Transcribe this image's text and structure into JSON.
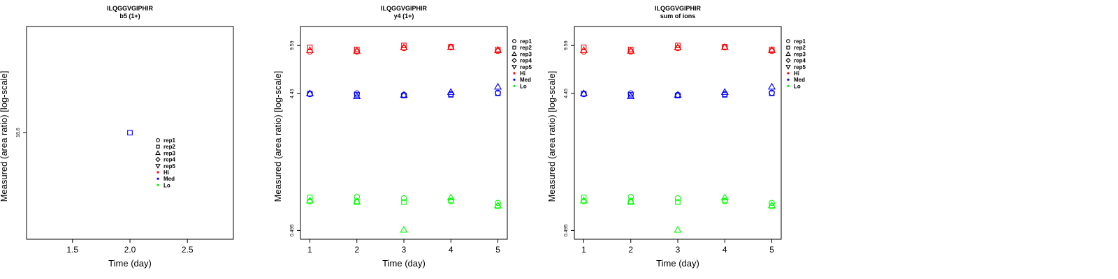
{
  "colors": {
    "Hi": "#ff0000",
    "Med": "#0000ff",
    "Lo": "#00ff00",
    "axis": "#000000"
  },
  "legend": {
    "reps": [
      {
        "label": "rep1",
        "shape": "circle"
      },
      {
        "label": "rep2",
        "shape": "square"
      },
      {
        "label": "rep3",
        "shape": "triangle-up"
      },
      {
        "label": "rep4",
        "shape": "diamond"
      },
      {
        "label": "rep5",
        "shape": "triangle-down"
      }
    ],
    "groups": [
      {
        "label": "Hi",
        "color": "#ff0000"
      },
      {
        "label": "Med",
        "color": "#0000ff"
      },
      {
        "label": "Lo",
        "color": "#00ff00"
      }
    ]
  },
  "chart_data": [
    {
      "type": "scatter",
      "title": "ILQGGVGIPHIR",
      "subtitle": "b5 (1+)",
      "xlabel": "Time (day)",
      "ylabel": "Measured (area ratio) [log-scale]",
      "xlim": [
        1.1,
        2.9
      ],
      "ylim": [
        4,
        86
      ],
      "log_y": true,
      "x_ticks": [
        1.5,
        2.0,
        2.5
      ],
      "x_tick_labels": [
        "1.5",
        "2.0",
        "2.5"
      ],
      "y_ticks": [
        18.6
      ],
      "y_tick_labels": [
        "18.6"
      ],
      "legend_position": "center-right",
      "points": [
        {
          "x": 2,
          "y": 18.6,
          "rep": "rep2",
          "group": "Med"
        }
      ]
    },
    {
      "type": "scatter",
      "title": "ILQGGVGIPHIR",
      "subtitle": "y4 (1+)",
      "xlabel": "Time (day)",
      "ylabel": "Measured (area ratio) [log-scale]",
      "xlim": [
        0.8,
        5.2
      ],
      "ylim": [
        0.43,
        13
      ],
      "log_y": true,
      "x_ticks": [
        1,
        2,
        3,
        4,
        5
      ],
      "x_tick_labels": [
        "1",
        "2",
        "3",
        "4",
        "5"
      ],
      "y_ticks": [
        0.495,
        4.43,
        9.59
      ],
      "y_tick_labels": [
        "0.495",
        "4.43",
        "9.59"
      ],
      "legend_position": "top-right",
      "points": [
        {
          "x": 1,
          "y": 8.7,
          "rep": "rep1",
          "group": "Hi"
        },
        {
          "x": 1,
          "y": 9.3,
          "rep": "rep2",
          "group": "Hi"
        },
        {
          "x": 1,
          "y": 8.9,
          "rep": "rep3",
          "group": "Hi"
        },
        {
          "x": 1,
          "y": 4.4,
          "rep": "rep1",
          "group": "Med"
        },
        {
          "x": 1,
          "y": 4.43,
          "rep": "rep2",
          "group": "Med"
        },
        {
          "x": 1,
          "y": 4.45,
          "rep": "rep3",
          "group": "Med"
        },
        {
          "x": 1,
          "y": 0.79,
          "rep": "rep1",
          "group": "Lo"
        },
        {
          "x": 1,
          "y": 0.84,
          "rep": "rep2",
          "group": "Lo"
        },
        {
          "x": 1,
          "y": 0.8,
          "rep": "rep3",
          "group": "Lo"
        },
        {
          "x": 2,
          "y": 8.7,
          "rep": "rep1",
          "group": "Hi"
        },
        {
          "x": 2,
          "y": 9.0,
          "rep": "rep2",
          "group": "Hi"
        },
        {
          "x": 2,
          "y": 8.8,
          "rep": "rep3",
          "group": "Hi"
        },
        {
          "x": 2,
          "y": 4.45,
          "rep": "rep1",
          "group": "Med"
        },
        {
          "x": 2,
          "y": 4.35,
          "rep": "rep2",
          "group": "Med"
        },
        {
          "x": 2,
          "y": 4.25,
          "rep": "rep3",
          "group": "Med"
        },
        {
          "x": 2,
          "y": 0.85,
          "rep": "rep1",
          "group": "Lo"
        },
        {
          "x": 2,
          "y": 0.78,
          "rep": "rep2",
          "group": "Lo"
        },
        {
          "x": 2,
          "y": 0.79,
          "rep": "rep3",
          "group": "Lo"
        },
        {
          "x": 3,
          "y": 9.2,
          "rep": "rep1",
          "group": "Hi"
        },
        {
          "x": 3,
          "y": 9.6,
          "rep": "rep2",
          "group": "Hi"
        },
        {
          "x": 3,
          "y": 9.3,
          "rep": "rep3",
          "group": "Hi"
        },
        {
          "x": 3,
          "y": 4.35,
          "rep": "rep1",
          "group": "Med"
        },
        {
          "x": 3,
          "y": 4.3,
          "rep": "rep2",
          "group": "Med"
        },
        {
          "x": 3,
          "y": 4.35,
          "rep": "rep3",
          "group": "Med"
        },
        {
          "x": 3,
          "y": 0.83,
          "rep": "rep1",
          "group": "Lo"
        },
        {
          "x": 3,
          "y": 0.78,
          "rep": "rep2",
          "group": "Lo"
        },
        {
          "x": 3,
          "y": 0.5,
          "rep": "rep3",
          "group": "Lo"
        },
        {
          "x": 4,
          "y": 9.3,
          "rep": "rep1",
          "group": "Hi"
        },
        {
          "x": 4,
          "y": 9.4,
          "rep": "rep2",
          "group": "Hi"
        },
        {
          "x": 4,
          "y": 9.35,
          "rep": "rep3",
          "group": "Hi"
        },
        {
          "x": 4,
          "y": 4.4,
          "rep": "rep1",
          "group": "Med"
        },
        {
          "x": 4,
          "y": 4.35,
          "rep": "rep2",
          "group": "Med"
        },
        {
          "x": 4,
          "y": 4.55,
          "rep": "rep3",
          "group": "Med"
        },
        {
          "x": 4,
          "y": 0.79,
          "rep": "rep1",
          "group": "Lo"
        },
        {
          "x": 4,
          "y": 0.8,
          "rep": "rep2",
          "group": "Lo"
        },
        {
          "x": 4,
          "y": 0.84,
          "rep": "rep3",
          "group": "Lo"
        },
        {
          "x": 5,
          "y": 8.8,
          "rep": "rep1",
          "group": "Hi"
        },
        {
          "x": 5,
          "y": 9.0,
          "rep": "rep2",
          "group": "Hi"
        },
        {
          "x": 5,
          "y": 8.9,
          "rep": "rep3",
          "group": "Hi"
        },
        {
          "x": 5,
          "y": 4.5,
          "rep": "rep1",
          "group": "Med"
        },
        {
          "x": 5,
          "y": 4.45,
          "rep": "rep2",
          "group": "Med"
        },
        {
          "x": 5,
          "y": 4.95,
          "rep": "rep3",
          "group": "Med"
        },
        {
          "x": 5,
          "y": 0.77,
          "rep": "rep1",
          "group": "Lo"
        },
        {
          "x": 5,
          "y": 0.73,
          "rep": "rep2",
          "group": "Lo"
        },
        {
          "x": 5,
          "y": 0.74,
          "rep": "rep3",
          "group": "Lo"
        }
      ]
    },
    {
      "type": "scatter",
      "title": "ILQGGVGIPHIR",
      "subtitle": "sum of ions",
      "xlabel": "Time (day)",
      "ylabel": "Measured (area ratio) [log-scale]",
      "xlim": [
        0.8,
        5.2
      ],
      "ylim": [
        0.43,
        13
      ],
      "log_y": true,
      "x_ticks": [
        1,
        2,
        3,
        4,
        5
      ],
      "x_tick_labels": [
        "1",
        "2",
        "3",
        "4",
        "5"
      ],
      "y_ticks": [
        0.495,
        4.45,
        9.59
      ],
      "y_tick_labels": [
        "0.495",
        "4.45",
        "9.59"
      ],
      "legend_position": "top-right",
      "points": [
        {
          "x": 1,
          "y": 8.7,
          "rep": "rep1",
          "group": "Hi"
        },
        {
          "x": 1,
          "y": 9.3,
          "rep": "rep2",
          "group": "Hi"
        },
        {
          "x": 1,
          "y": 8.9,
          "rep": "rep3",
          "group": "Hi"
        },
        {
          "x": 1,
          "y": 4.4,
          "rep": "rep1",
          "group": "Med"
        },
        {
          "x": 1,
          "y": 4.43,
          "rep": "rep2",
          "group": "Med"
        },
        {
          "x": 1,
          "y": 4.45,
          "rep": "rep3",
          "group": "Med"
        },
        {
          "x": 1,
          "y": 0.79,
          "rep": "rep1",
          "group": "Lo"
        },
        {
          "x": 1,
          "y": 0.84,
          "rep": "rep2",
          "group": "Lo"
        },
        {
          "x": 1,
          "y": 0.8,
          "rep": "rep3",
          "group": "Lo"
        },
        {
          "x": 2,
          "y": 8.7,
          "rep": "rep1",
          "group": "Hi"
        },
        {
          "x": 2,
          "y": 9.0,
          "rep": "rep2",
          "group": "Hi"
        },
        {
          "x": 2,
          "y": 8.8,
          "rep": "rep3",
          "group": "Hi"
        },
        {
          "x": 2,
          "y": 4.45,
          "rep": "rep1",
          "group": "Med"
        },
        {
          "x": 2,
          "y": 4.35,
          "rep": "rep2",
          "group": "Med"
        },
        {
          "x": 2,
          "y": 4.25,
          "rep": "rep3",
          "group": "Med"
        },
        {
          "x": 2,
          "y": 0.85,
          "rep": "rep1",
          "group": "Lo"
        },
        {
          "x": 2,
          "y": 0.78,
          "rep": "rep2",
          "group": "Lo"
        },
        {
          "x": 2,
          "y": 0.79,
          "rep": "rep3",
          "group": "Lo"
        },
        {
          "x": 3,
          "y": 9.2,
          "rep": "rep1",
          "group": "Hi"
        },
        {
          "x": 3,
          "y": 9.6,
          "rep": "rep2",
          "group": "Hi"
        },
        {
          "x": 3,
          "y": 9.3,
          "rep": "rep3",
          "group": "Hi"
        },
        {
          "x": 3,
          "y": 4.35,
          "rep": "rep1",
          "group": "Med"
        },
        {
          "x": 3,
          "y": 4.3,
          "rep": "rep2",
          "group": "Med"
        },
        {
          "x": 3,
          "y": 4.35,
          "rep": "rep3",
          "group": "Med"
        },
        {
          "x": 3,
          "y": 0.83,
          "rep": "rep1",
          "group": "Lo"
        },
        {
          "x": 3,
          "y": 0.78,
          "rep": "rep2",
          "group": "Lo"
        },
        {
          "x": 3,
          "y": 0.5,
          "rep": "rep3",
          "group": "Lo"
        },
        {
          "x": 4,
          "y": 9.3,
          "rep": "rep1",
          "group": "Hi"
        },
        {
          "x": 4,
          "y": 9.4,
          "rep": "rep2",
          "group": "Hi"
        },
        {
          "x": 4,
          "y": 9.35,
          "rep": "rep3",
          "group": "Hi"
        },
        {
          "x": 4,
          "y": 4.4,
          "rep": "rep1",
          "group": "Med"
        },
        {
          "x": 4,
          "y": 4.35,
          "rep": "rep2",
          "group": "Med"
        },
        {
          "x": 4,
          "y": 4.55,
          "rep": "rep3",
          "group": "Med"
        },
        {
          "x": 4,
          "y": 0.79,
          "rep": "rep1",
          "group": "Lo"
        },
        {
          "x": 4,
          "y": 0.8,
          "rep": "rep2",
          "group": "Lo"
        },
        {
          "x": 4,
          "y": 0.84,
          "rep": "rep3",
          "group": "Lo"
        },
        {
          "x": 5,
          "y": 8.8,
          "rep": "rep1",
          "group": "Hi"
        },
        {
          "x": 5,
          "y": 9.0,
          "rep": "rep2",
          "group": "Hi"
        },
        {
          "x": 5,
          "y": 8.9,
          "rep": "rep3",
          "group": "Hi"
        },
        {
          "x": 5,
          "y": 4.5,
          "rep": "rep1",
          "group": "Med"
        },
        {
          "x": 5,
          "y": 4.45,
          "rep": "rep2",
          "group": "Med"
        },
        {
          "x": 5,
          "y": 4.95,
          "rep": "rep3",
          "group": "Med"
        },
        {
          "x": 5,
          "y": 0.77,
          "rep": "rep1",
          "group": "Lo"
        },
        {
          "x": 5,
          "y": 0.73,
          "rep": "rep2",
          "group": "Lo"
        },
        {
          "x": 5,
          "y": 0.74,
          "rep": "rep3",
          "group": "Lo"
        }
      ]
    }
  ]
}
